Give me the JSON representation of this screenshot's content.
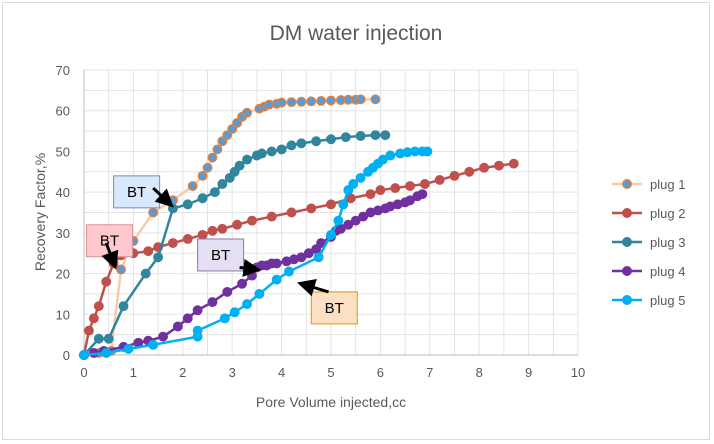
{
  "chart_data": {
    "type": "scatter",
    "title": "DM water injection",
    "xlabel": "Pore Volume injected,cc",
    "ylabel": "Recovery Factor,%",
    "xlim": [
      0,
      10
    ],
    "ylim": [
      0,
      70
    ],
    "xticks": [
      0,
      1,
      2,
      3,
      4,
      5,
      6,
      7,
      8,
      9,
      10
    ],
    "yticks": [
      0,
      10,
      20,
      30,
      40,
      50,
      60,
      70
    ],
    "grid": true,
    "legend_position": "right",
    "series": [
      {
        "name": "plug 1",
        "line_color": "#f8cbad",
        "marker_color": "#5b9bd5",
        "marker_edge": "#ed7d31",
        "x": [
          0.0,
          0.3,
          0.55,
          0.75,
          1.0,
          1.4,
          1.8,
          2.2,
          2.4,
          2.5,
          2.6,
          2.7,
          2.8,
          2.9,
          3.0,
          3.1,
          3.2,
          3.3,
          3.55,
          3.65,
          3.75,
          3.9,
          4.0,
          4.2,
          4.4,
          4.6,
          4.8,
          5.0,
          5.2,
          5.35,
          5.5,
          5.6,
          5.9
        ],
        "y": [
          0.0,
          0.5,
          1.0,
          21.0,
          28.0,
          35.0,
          38.0,
          41.5,
          44.0,
          46.0,
          48.5,
          50.5,
          52.5,
          54.0,
          55.5,
          57.0,
          58.5,
          59.5,
          60.5,
          61.0,
          61.5,
          61.7,
          62.0,
          62.1,
          62.2,
          62.3,
          62.4,
          62.5,
          62.6,
          62.7,
          62.7,
          62.8,
          62.8
        ]
      },
      {
        "name": "plug 2",
        "line_color": "#c0504d",
        "marker_color": "#c0504d",
        "marker_edge": "#c0504d",
        "x": [
          0.0,
          0.1,
          0.2,
          0.3,
          0.45,
          0.6,
          0.75,
          1.0,
          1.3,
          1.5,
          1.8,
          2.1,
          2.4,
          2.6,
          2.8,
          3.1,
          3.4,
          3.8,
          4.2,
          4.6,
          5.0,
          5.4,
          5.8,
          6.0,
          6.3,
          6.6,
          6.9,
          7.2,
          7.5,
          7.8,
          8.1,
          8.4,
          8.7
        ],
        "y": [
          0.0,
          6.0,
          9.0,
          12.0,
          18.0,
          22.5,
          24.5,
          25.0,
          25.5,
          26.5,
          27.5,
          28.5,
          29.5,
          30.5,
          31.0,
          32.0,
          33.0,
          34.0,
          35.0,
          36.0,
          37.0,
          38.5,
          39.5,
          40.5,
          41.0,
          41.5,
          42.0,
          43.0,
          44.0,
          45.0,
          46.0,
          46.5,
          47.0
        ]
      },
      {
        "name": "plug 3",
        "line_color": "#31859c",
        "marker_color": "#31859c",
        "marker_edge": "#31859c",
        "x": [
          0.0,
          0.3,
          0.5,
          0.8,
          1.25,
          1.5,
          1.8,
          2.1,
          2.4,
          2.65,
          2.8,
          2.95,
          3.05,
          3.15,
          3.3,
          3.5,
          3.6,
          3.8,
          4.0,
          4.2,
          4.4,
          4.7,
          5.0,
          5.3,
          5.6,
          5.9,
          6.1
        ],
        "y": [
          0.0,
          4.0,
          4.0,
          12.0,
          20.0,
          24.0,
          36.0,
          37.0,
          38.5,
          40.0,
          42.0,
          43.5,
          45.0,
          46.5,
          48.0,
          49.0,
          49.5,
          50.0,
          50.5,
          51.5,
          52.0,
          52.5,
          53.0,
          53.5,
          53.8,
          54.0,
          54.0
        ]
      },
      {
        "name": "plug 4",
        "line_color": "#7030a0",
        "marker_color": "#7030a0",
        "marker_edge": "#7030a0",
        "x": [
          0.0,
          0.2,
          0.4,
          0.8,
          1.1,
          1.3,
          1.6,
          1.9,
          2.1,
          2.3,
          2.6,
          2.9,
          3.2,
          3.4,
          3.5,
          3.6,
          3.7,
          3.8,
          3.9,
          4.1,
          4.25,
          4.4,
          4.55,
          4.7,
          4.8,
          5.0,
          5.1,
          5.2,
          5.35,
          5.5,
          5.65,
          5.8,
          5.95,
          6.1,
          6.2,
          6.35,
          6.5,
          6.6,
          6.75,
          6.85
        ],
        "y": [
          0.0,
          0.5,
          1.0,
          2.0,
          3.0,
          3.5,
          4.5,
          7.0,
          9.0,
          11.0,
          13.0,
          15.5,
          17.5,
          19.5,
          21.5,
          22.0,
          22.0,
          22.5,
          22.5,
          23.0,
          23.5,
          24.0,
          25.0,
          26.0,
          27.5,
          29.0,
          30.5,
          31.0,
          32.0,
          33.0,
          34.0,
          35.0,
          35.5,
          36.0,
          36.5,
          37.0,
          37.5,
          38.0,
          39.0,
          39.5
        ]
      },
      {
        "name": "plug 5",
        "line_color": "#00b0f0",
        "marker_color": "#00b0f0",
        "marker_edge": "#00b0f0",
        "x": [
          0.0,
          0.45,
          0.9,
          1.4,
          2.3,
          2.3,
          2.85,
          3.05,
          3.3,
          3.55,
          3.9,
          4.15,
          4.75,
          5.0,
          5.15,
          5.25,
          5.35,
          5.45,
          5.6,
          5.75,
          5.85,
          5.95,
          6.05,
          6.2,
          6.4,
          6.55,
          6.7,
          6.85,
          6.95
        ],
        "y": [
          0.0,
          0.5,
          1.5,
          2.5,
          4.5,
          6.0,
          9.0,
          10.5,
          12.5,
          15.0,
          18.5,
          20.5,
          24.0,
          29.5,
          33.0,
          37.0,
          40.5,
          42.0,
          43.5,
          45.0,
          46.0,
          47.0,
          48.0,
          49.0,
          49.5,
          49.8,
          50.0,
          50.0,
          50.0
        ]
      }
    ],
    "annotations": [
      {
        "text": "BT",
        "fill": "#dae8fc",
        "edge": "#6c8ebf",
        "box_x": 0.6,
        "box_y": 44.0,
        "arrow_from": [
          1.4,
          41.0
        ],
        "arrow_to": [
          1.75,
          37.0
        ]
      },
      {
        "text": "BT",
        "fill": "#ffc7ce",
        "edge": "#d99594",
        "box_x": 0.05,
        "box_y": 32.0,
        "arrow_from": [
          0.45,
          27.5
        ],
        "arrow_to": [
          0.62,
          22.0
        ]
      },
      {
        "text": "BT",
        "fill": "#e4dff3",
        "edge": "#9673a6",
        "box_x": 2.3,
        "box_y": 28.5,
        "arrow_from": [
          3.15,
          21.5
        ],
        "arrow_to": [
          3.5,
          21.0
        ]
      },
      {
        "text": "BT",
        "fill": "#fde0c3",
        "edge": "#d79b00",
        "box_x": 4.6,
        "box_y": 15.5,
        "arrow_from": [
          4.95,
          15.5
        ],
        "arrow_to": [
          4.4,
          17.5
        ]
      }
    ]
  }
}
